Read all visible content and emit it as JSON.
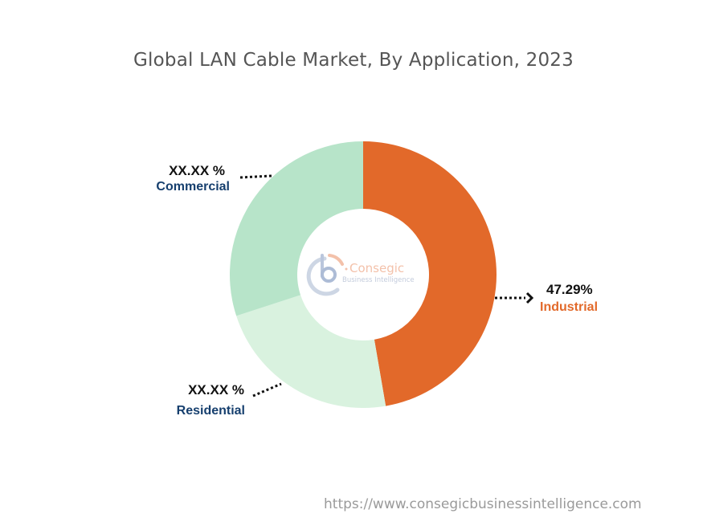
{
  "title": "Global LAN Cable Market, By Application, 2023",
  "chart_data": {
    "type": "pie",
    "subtype": "donut",
    "title": "Global LAN Cable Market, By Application, 2023",
    "categories": [
      "Industrial",
      "Residential",
      "Commercial"
    ],
    "values": [
      47.29,
      22.7,
      30.01
    ],
    "value_labels": [
      "47.29%",
      "XX.XX %",
      "XX.XX %"
    ],
    "colors": [
      "#e2692a",
      "#d9f2df",
      "#b7e4c9"
    ],
    "start_angle_deg": 0,
    "direction": "clockwise",
    "legend": "none (callout labels)",
    "note": "Only Industrial value disclosed; Residential and Commercial shown as XX.XX %, shares estimated from slice angles"
  },
  "labels": {
    "industrial": {
      "value": "47.29%",
      "name": "Industrial",
      "color": "#e2692a"
    },
    "commercial": {
      "value": "XX.XX %",
      "name": "Commercial",
      "color": "#163f6e"
    },
    "residential": {
      "value": "XX.XX %",
      "name": "Residential",
      "color": "#163f6e"
    }
  },
  "logo": {
    "line1": "Consegic",
    "line2": "Business Intelligence"
  },
  "footer": {
    "url": "https://www.consegicbusinessintelligence.com"
  }
}
